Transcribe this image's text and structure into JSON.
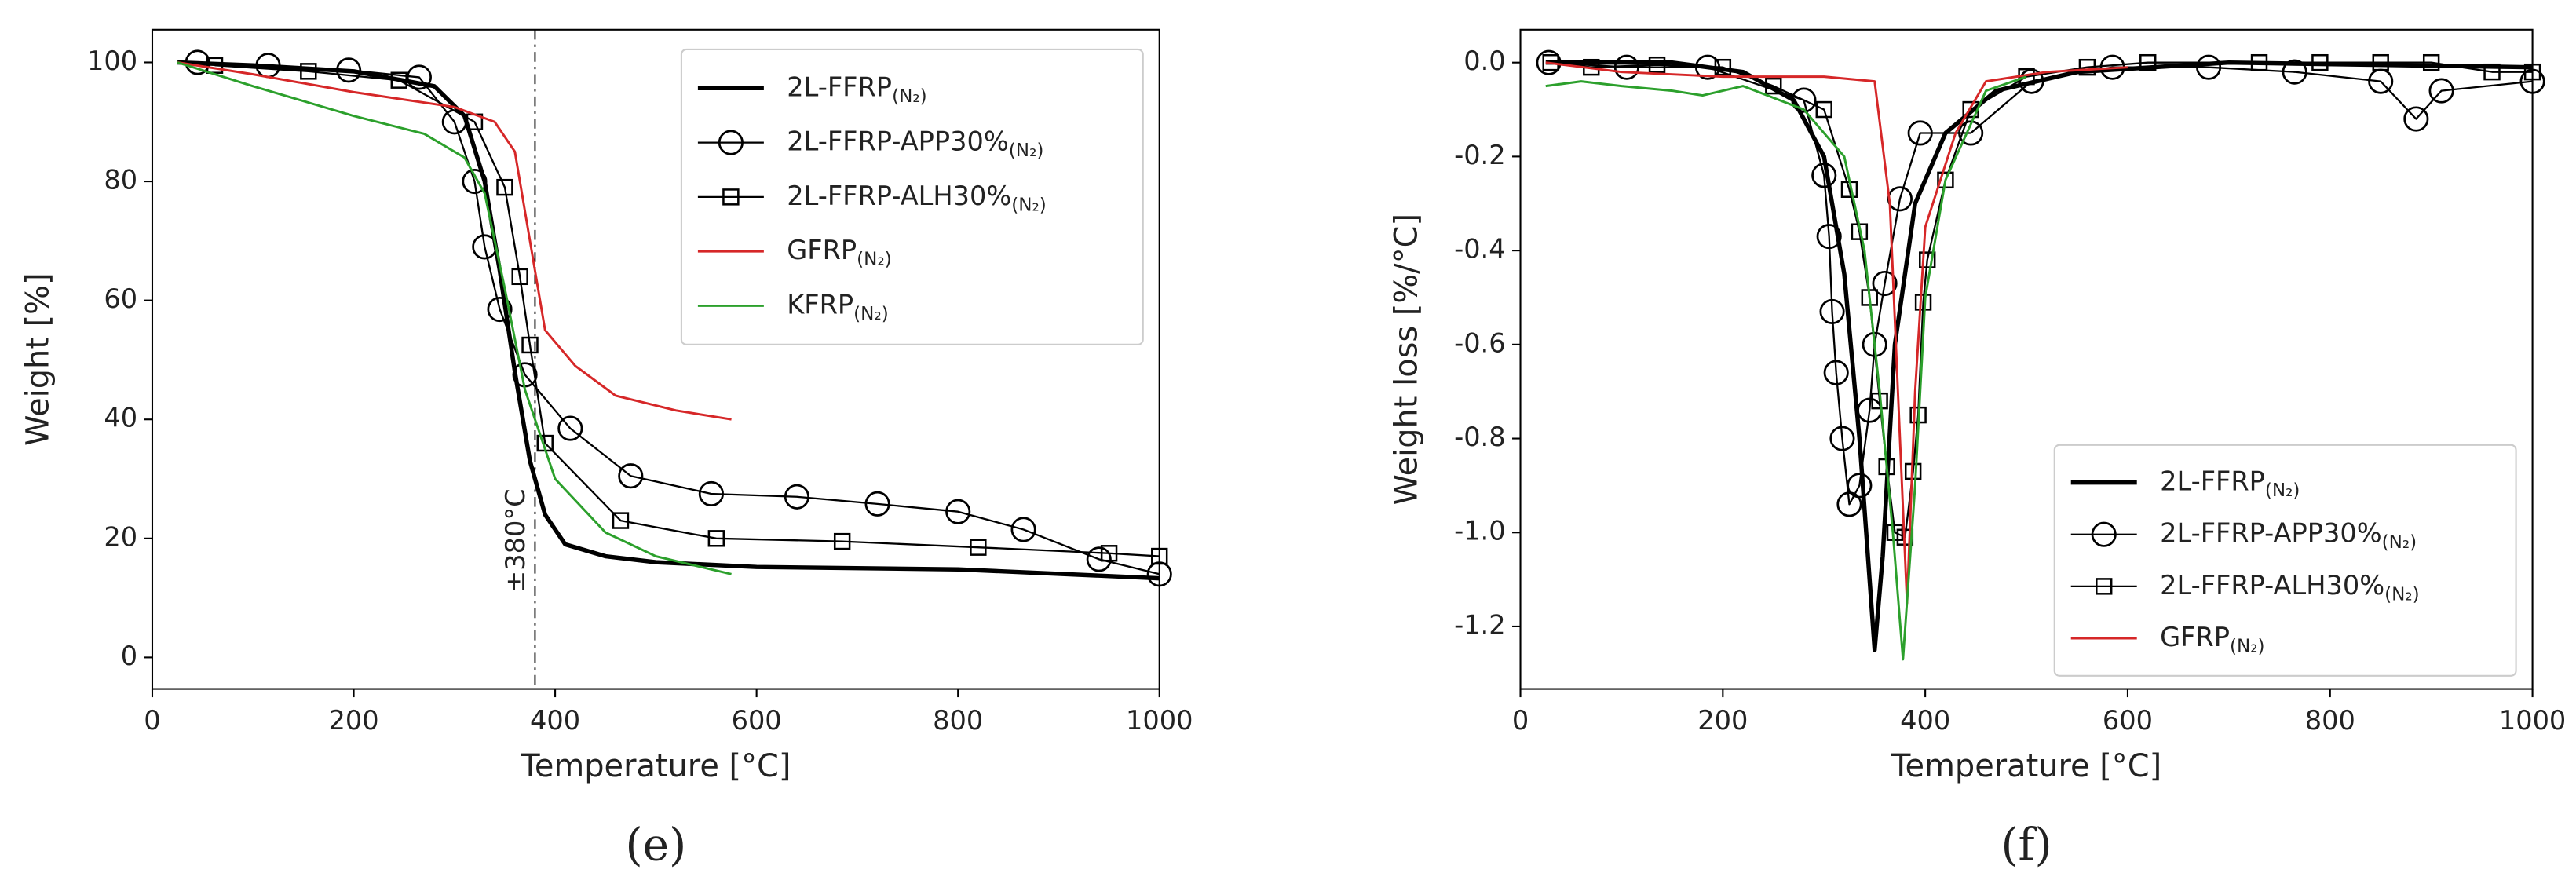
{
  "chart_data": [
    {
      "type": "line",
      "caption": "(e)",
      "xlabel": "Temperature [°C]",
      "ylabel": "Weight [%]",
      "xlim": [
        0,
        1000
      ],
      "ylim": [
        -5.3,
        105.5
      ],
      "xticks": [
        0,
        200,
        400,
        600,
        800,
        1000
      ],
      "yticks": [
        0,
        20,
        40,
        60,
        80,
        100
      ],
      "legend": "upper right",
      "grid": false,
      "vline": {
        "x": 380,
        "label": "±380°C"
      },
      "series": [
        {
          "name": "2L-FFRP(N₂)",
          "color": "#000000",
          "marker": "none",
          "width": 2.6,
          "x": [
            25,
            100,
            200,
            280,
            310,
            330,
            345,
            360,
            375,
            390,
            410,
            450,
            500,
            600,
            800,
            1000
          ],
          "values": [
            100,
            99.5,
            98.5,
            96,
            91,
            80,
            65,
            48,
            33,
            24,
            19,
            17,
            16,
            15.2,
            14.8,
            13.3
          ]
        },
        {
          "name": "2L-FFRP-APP30%(N₂)",
          "color": "#000000",
          "marker": "o",
          "width": 1.1,
          "x": [
            45,
            115,
            195,
            265,
            300,
            320,
            330,
            345,
            370,
            415,
            475,
            555,
            640,
            720,
            800,
            865,
            940,
            1000
          ],
          "values": [
            100,
            99.5,
            98.7,
            97.5,
            90,
            80,
            69,
            58.5,
            47.5,
            38.5,
            30.5,
            27.5,
            27,
            25.8,
            24.5,
            21.5,
            16.5,
            14
          ]
        },
        {
          "name": "2L-FFRP-ALH30%(N₂)",
          "color": "#000000",
          "marker": "s",
          "width": 1.1,
          "x": [
            62,
            155,
            245,
            320,
            350,
            365,
            375,
            390,
            465,
            560,
            685,
            820,
            950,
            1000
          ],
          "values": [
            99.5,
            98.5,
            97,
            90,
            79,
            64,
            52.5,
            36,
            23,
            20,
            19.5,
            18.5,
            17.5,
            17
          ]
        },
        {
          "name": "GFRP(N₂)",
          "color": "#d62728",
          "marker": "none",
          "width": 1.4,
          "x": [
            25,
            100,
            200,
            300,
            340,
            360,
            375,
            390,
            420,
            460,
            520,
            575
          ],
          "values": [
            100,
            98,
            95,
            92.5,
            90,
            85,
            70,
            55,
            49,
            44,
            41.5,
            40
          ]
        },
        {
          "name": "KFRP(N₂)",
          "color": "#2ca02c",
          "marker": "none",
          "width": 1.4,
          "x": [
            25,
            100,
            200,
            270,
            310,
            330,
            350,
            370,
            400,
            450,
            500,
            575
          ],
          "values": [
            100,
            96,
            91,
            88,
            84,
            78,
            62,
            45,
            30,
            21,
            17,
            14
          ]
        }
      ]
    },
    {
      "type": "line",
      "caption": "(f)",
      "xlabel": "Temperature [°C]",
      "ylabel": "Weight loss [%/°C]",
      "xlim": [
        0,
        1000
      ],
      "ylim": [
        -1.333,
        0.07
      ],
      "xticks": [
        0,
        200,
        400,
        600,
        800,
        1000
      ],
      "yticks": [
        {
          "value": 0,
          "label": "0.0"
        },
        -0.2,
        -0.4,
        -0.6,
        -0.8,
        {
          "value": -1,
          "label": "-1.0"
        },
        -1.2
      ],
      "legend": "lower right",
      "grid": false,
      "series": [
        {
          "name": "2L-FFRP(N₂)",
          "color": "#000000",
          "marker": "none",
          "width": 2.6,
          "x": [
            25,
            150,
            220,
            270,
            300,
            320,
            335,
            345,
            350,
            358,
            370,
            390,
            420,
            470,
            550,
            700,
            1000
          ],
          "values": [
            0,
            0,
            -0.02,
            -0.08,
            -0.2,
            -0.45,
            -0.8,
            -1.1,
            -1.25,
            -1.05,
            -0.6,
            -0.3,
            -0.15,
            -0.06,
            -0.02,
            0,
            -0.01
          ]
        },
        {
          "name": "2L-FFRP-APP30%(N₂)",
          "color": "#000000",
          "marker": "o",
          "width": 1.1,
          "x": [
            28,
            105,
            185,
            280,
            300,
            305,
            308,
            312,
            318,
            325,
            335,
            345,
            350,
            360,
            375,
            395,
            445,
            505,
            585,
            680,
            765,
            850,
            885,
            910,
            1000
          ],
          "values": [
            0,
            -0.01,
            -0.01,
            -0.08,
            -0.24,
            -0.37,
            -0.53,
            -0.66,
            -0.8,
            -0.94,
            -0.9,
            -0.74,
            -0.6,
            -0.47,
            -0.29,
            -0.15,
            -0.15,
            -0.04,
            -0.01,
            -0.01,
            -0.02,
            -0.04,
            -0.12,
            -0.06,
            -0.04
          ]
        },
        {
          "name": "2L-FFRP-ALH30%(N₂)",
          "color": "#000000",
          "marker": "s",
          "width": 1.1,
          "x": [
            30,
            70,
            135,
            200,
            250,
            300,
            325,
            335,
            345,
            355,
            362,
            370,
            380,
            388,
            393,
            398,
            402,
            420,
            445,
            500,
            560,
            620,
            730,
            790,
            850,
            900,
            960,
            1000
          ],
          "values": [
            0,
            -0.01,
            -0.005,
            -0.01,
            -0.05,
            -0.1,
            -0.27,
            -0.36,
            -0.5,
            -0.72,
            -0.86,
            -1,
            -1.01,
            -0.87,
            -0.75,
            -0.51,
            -0.42,
            -0.25,
            -0.1,
            -0.03,
            -0.01,
            0,
            0,
            0,
            0,
            0,
            -0.02,
            -0.02
          ]
        },
        {
          "name": "GFRP(N₂)",
          "color": "#d62728",
          "marker": "none",
          "width": 1.4,
          "x": [
            25,
            100,
            200,
            300,
            350,
            365,
            375,
            382,
            390,
            400,
            430,
            460,
            520,
            600
          ],
          "values": [
            0,
            -0.02,
            -0.03,
            -0.03,
            -0.04,
            -0.3,
            -0.8,
            -1.15,
            -0.7,
            -0.35,
            -0.15,
            -0.04,
            -0.02,
            -0.01
          ]
        },
        {
          "color": "#2ca02c",
          "marker": "none",
          "width": 1.4,
          "x": [
            25,
            60,
            100,
            150,
            180,
            220,
            280,
            320,
            340,
            355,
            368,
            378,
            390,
            400,
            420,
            460,
            500
          ],
          "values": [
            -0.05,
            -0.04,
            -0.05,
            -0.06,
            -0.07,
            -0.05,
            -0.1,
            -0.2,
            -0.4,
            -0.7,
            -1,
            -1.27,
            -0.9,
            -0.5,
            -0.25,
            -0.06,
            -0.03
          ]
        }
      ]
    }
  ]
}
